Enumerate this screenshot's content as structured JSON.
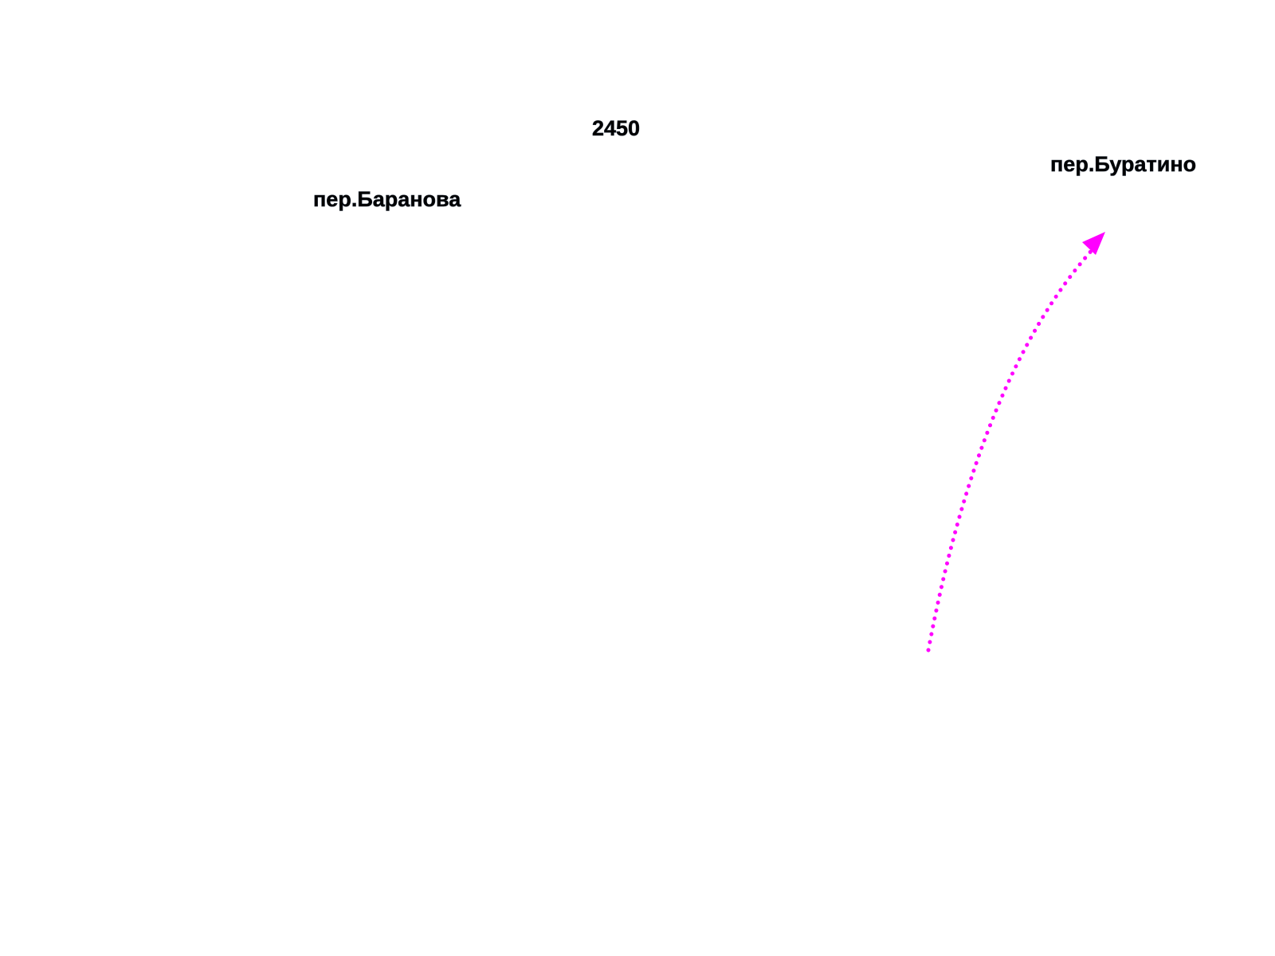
{
  "labels": {
    "house_number": "2450",
    "street_west": "пер.Баранова",
    "street_east": "пер.Буратино"
  }
}
